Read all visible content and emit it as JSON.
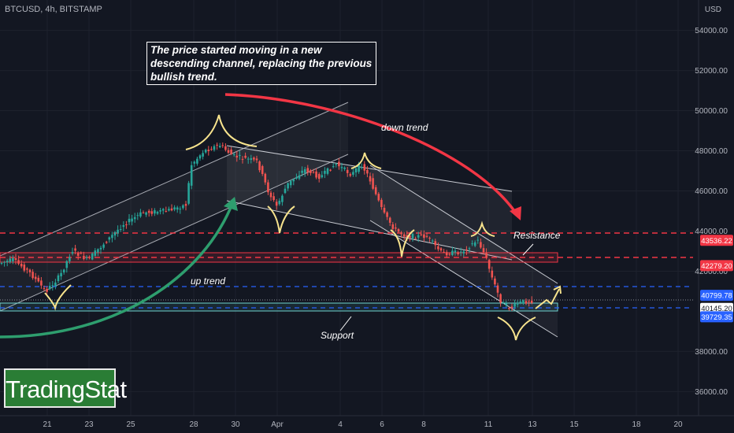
{
  "symbol": "BTCUSD, 4h, BITSTAMP",
  "currency": "USD",
  "annotation_main": "The price started moving in a new descending channel, replacing the previous bullish trend.",
  "labels": {
    "down_trend": "down trend",
    "up_trend": "up trend",
    "resistance": "Resistance",
    "support": "Support"
  },
  "brand": "TradingStat",
  "colors": {
    "bg": "#131722",
    "up": "#26a69a",
    "down": "#ef5350",
    "resistance_line": "#f23645",
    "support_line": "#2962ff",
    "up_arrow": "#2e9e6e",
    "down_arrow": "#f23645",
    "highlight": "#f7e38d"
  },
  "chart_data": {
    "type": "candlestick",
    "title": "BTCUSD, 4h, BITSTAMP",
    "x_ticks": [
      "21",
      "23",
      "25",
      "28",
      "30",
      "Apr",
      "4",
      "6",
      "8",
      "11",
      "13",
      "15",
      "18",
      "20"
    ],
    "y_ticks": [
      "54000.00",
      "52000.00",
      "50000.00",
      "48000.00",
      "46000.00",
      "44000.00",
      "42000.00",
      "38000.00",
      "36000.00"
    ],
    "ylim": [
      34800,
      55200
    ],
    "price_labels": [
      {
        "value": 43536.22,
        "text": "43536.22",
        "kind": "resistance"
      },
      {
        "value": 42279.2,
        "text": "42279.20",
        "kind": "resistance"
      },
      {
        "value": 40799.78,
        "text": "40799.78",
        "kind": "support"
      },
      {
        "value": 40145.2,
        "text": "40145.20",
        "kind": "last"
      },
      {
        "value": 39729.35,
        "text": "39729.35",
        "kind": "support"
      }
    ],
    "key_points": [
      {
        "date": "Mar 21",
        "price": 40800
      },
      {
        "date": "Mar 28",
        "price": 47500
      },
      {
        "date": "Mar 29",
        "price": 48000
      },
      {
        "date": "Apr 1",
        "price": 45000
      },
      {
        "date": "Apr 5",
        "price": 47200
      },
      {
        "date": "Apr 7",
        "price": 43500
      },
      {
        "date": "Apr 10",
        "price": 42700
      },
      {
        "date": "Apr 11",
        "price": 40000
      },
      {
        "date": "Apr 12",
        "price": 39300
      },
      {
        "date": "Apr 13",
        "price": 40145
      }
    ]
  }
}
